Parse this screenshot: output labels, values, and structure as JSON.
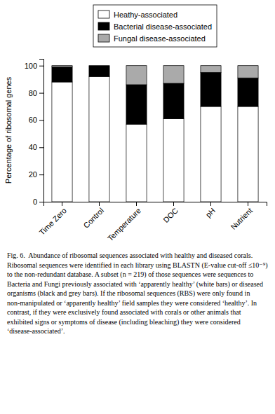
{
  "chart_data": {
    "type": "bar",
    "stacked": true,
    "categories": [
      "Time Zero",
      "Control",
      "Temperature",
      "DOC",
      "pH",
      "Nutrient"
    ],
    "series": [
      {
        "name": "Heathy-associated",
        "color": "#ffffff",
        "values": [
          88,
          92,
          57,
          61,
          70,
          70
        ]
      },
      {
        "name": "Bacterial disease-associated",
        "color": "#000000",
        "values": [
          11,
          8,
          29,
          26,
          25,
          21
        ]
      },
      {
        "name": "Fungal disease-associated",
        "color": "#aaaaaa",
        "values": [
          1,
          0,
          14,
          13,
          5,
          9
        ]
      }
    ],
    "ylabel": "Percentage of ribosomal genes",
    "ylim": [
      0,
      105
    ],
    "yticks": [
      0,
      20,
      40,
      60,
      80,
      100
    ],
    "legend": "top",
    "caption": "Fig. 6.  Abundance of ribosomal sequences associated with healthy and diseased corals. Ribosomal sequences were identified in each library using BLASTN (E-value cut-off ≤10⁻⁹) to the non-redundant database. A subset (n = 219) of those sequences were sequences to Bacteria and Fungi previously associated with ‘apparently healthy’ (white bars) or diseased organisms (black and grey bars). If the ribosomal sequences (RBS) were only found in non-manipulated or ‘apparently healthy’ field samples they were considered ‘healthy’. In contrast, if they were exclusively found associated with corals or other animals that exhibited signs or symptoms of disease (including bleaching) they were considered ‘disease-associated’."
  }
}
